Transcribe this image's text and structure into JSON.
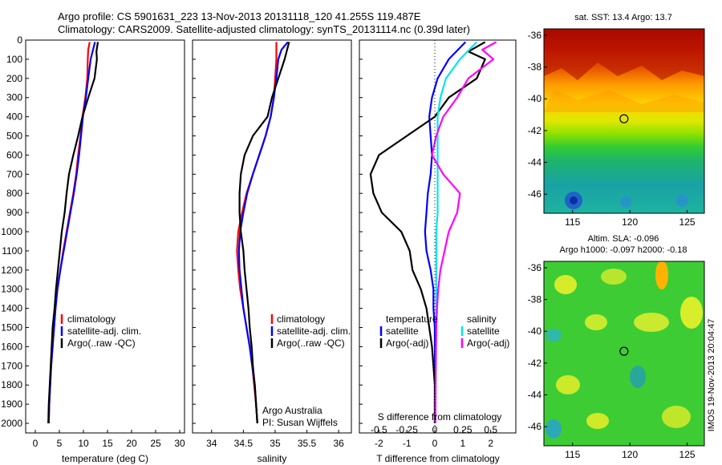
{
  "header": {
    "line1": "Argo profile: CS 5901631_223 13-Nov-2013 20131118_120 41.255S 119.487E",
    "line2": "Climatology: CARS2009. Satellite-adjusted climatology: synTS_20131114.nc (0.39d later)"
  },
  "colors": {
    "climatology": "#ff0000",
    "satellite": "#0000ff",
    "argo": "#000000",
    "satellite_s": "#00e5ee",
    "argo_s": "#ff00ff"
  },
  "depth_axis": {
    "ticks": [
      "0",
      "100",
      "200",
      "300",
      "400",
      "500",
      "600",
      "700",
      "800",
      "900",
      "1000",
      "1100",
      "1200",
      "1300",
      "1400",
      "1500",
      "1600",
      "1700",
      "1800",
      "1900",
      "2000"
    ],
    "range": [
      0,
      2050
    ]
  },
  "chart_data": [
    {
      "type": "line",
      "id": "temperature",
      "xlabel": "temperature (deg C)",
      "xlim": [
        -2,
        31
      ],
      "xticks": [
        0,
        5,
        10,
        15,
        20,
        25,
        30
      ],
      "xtick_labels": [
        "0",
        "5",
        "10",
        "15",
        "20",
        "25",
        "30"
      ],
      "legend": [
        "climatology",
        "satellite-adj. clim.",
        "Argo(..raw -QC)"
      ],
      "series": [
        {
          "name": "climatology",
          "color": "#ff0000",
          "points": [
            [
              11.3,
              10
            ],
            [
              11,
              50
            ],
            [
              10.9,
              100
            ],
            [
              10.8,
              200
            ],
            [
              10.4,
              300
            ],
            [
              9.8,
              400
            ],
            [
              9.4,
              500
            ],
            [
              8.9,
              600
            ],
            [
              8.5,
              700
            ],
            [
              7.9,
              800
            ],
            [
              7.2,
              900
            ],
            [
              6.5,
              1000
            ],
            [
              5.8,
              1100
            ],
            [
              5.2,
              1200
            ],
            [
              4.6,
              1300
            ],
            [
              4.2,
              1400
            ],
            [
              3.9,
              1500
            ],
            [
              3.6,
              1600
            ],
            [
              3.3,
              1700
            ],
            [
              3.1,
              1800
            ],
            [
              2.9,
              1900
            ],
            [
              2.8,
              2000
            ]
          ]
        },
        {
          "name": "satellite-adj. clim.",
          "color": "#0000ff",
          "points": [
            [
              12.4,
              10
            ],
            [
              12,
              50
            ],
            [
              11.5,
              100
            ],
            [
              11,
              200
            ],
            [
              10.5,
              300
            ],
            [
              9.9,
              400
            ],
            [
              9.5,
              500
            ],
            [
              9.1,
              600
            ],
            [
              8.6,
              700
            ],
            [
              8,
              800
            ],
            [
              7.3,
              900
            ],
            [
              6.6,
              1000
            ],
            [
              5.9,
              1100
            ],
            [
              5.2,
              1200
            ],
            [
              4.6,
              1300
            ],
            [
              4.2,
              1400
            ],
            [
              3.9,
              1500
            ],
            [
              3.6,
              1600
            ],
            [
              3.3,
              1700
            ],
            [
              3.1,
              1800
            ],
            [
              2.9,
              1900
            ],
            [
              2.8,
              2000
            ]
          ]
        },
        {
          "name": "Argo(..raw -QC)",
          "color": "#000000",
          "points": [
            [
              13,
              10
            ],
            [
              12.7,
              60
            ],
            [
              12.8,
              100
            ],
            [
              12.3,
              200
            ],
            [
              11,
              300
            ],
            [
              9.8,
              400
            ],
            [
              8.9,
              500
            ],
            [
              7.9,
              600
            ],
            [
              7,
              700
            ],
            [
              6.5,
              800
            ],
            [
              6.1,
              900
            ],
            [
              5.5,
              1000
            ],
            [
              5.1,
              1100
            ],
            [
              4.7,
              1200
            ],
            [
              4.3,
              1300
            ],
            [
              4,
              1400
            ],
            [
              3.6,
              1500
            ],
            [
              3.4,
              1600
            ],
            [
              3.2,
              1700
            ],
            [
              3,
              1800
            ],
            [
              2.8,
              1900
            ],
            [
              2.7,
              2000
            ]
          ]
        }
      ]
    },
    {
      "type": "line",
      "id": "salinity",
      "xlabel": "salinity",
      "xlim": [
        33.7,
        36.2
      ],
      "xticks": [
        34,
        34.5,
        35,
        35.5,
        36
      ],
      "xtick_labels": [
        "34",
        "34.5",
        "35",
        "35.5",
        "36"
      ],
      "legend": [
        "climatology",
        "satellite-adj. clim.",
        "Argo(..raw -QC)"
      ],
      "credits": [
        "Argo Australia",
        "PI: Susan Wijffels"
      ],
      "series": [
        {
          "name": "climatology",
          "color": "#ff0000",
          "points": [
            [
              35.02,
              10
            ],
            [
              35.02,
              100
            ],
            [
              35,
              200
            ],
            [
              34.98,
              300
            ],
            [
              34.93,
              400
            ],
            [
              34.85,
              500
            ],
            [
              34.75,
              600
            ],
            [
              34.65,
              700
            ],
            [
              34.55,
              800
            ],
            [
              34.48,
              900
            ],
            [
              34.42,
              1000
            ],
            [
              34.4,
              1100
            ],
            [
              34.42,
              1200
            ],
            [
              34.45,
              1300
            ],
            [
              34.5,
              1400
            ],
            [
              34.55,
              1500
            ],
            [
              34.6,
              1600
            ],
            [
              34.64,
              1700
            ],
            [
              34.67,
              1800
            ],
            [
              34.7,
              1900
            ],
            [
              34.72,
              2000
            ]
          ]
        },
        {
          "name": "satellite-adj. clim.",
          "color": "#0000ff",
          "points": [
            [
              35.2,
              10
            ],
            [
              35.1,
              50
            ],
            [
              35.05,
              100
            ],
            [
              35.02,
              200
            ],
            [
              34.98,
              300
            ],
            [
              34.93,
              400
            ],
            [
              34.85,
              500
            ],
            [
              34.75,
              600
            ],
            [
              34.65,
              700
            ],
            [
              34.56,
              800
            ],
            [
              34.5,
              900
            ],
            [
              34.45,
              1000
            ],
            [
              34.43,
              1100
            ],
            [
              34.44,
              1200
            ],
            [
              34.47,
              1300
            ],
            [
              34.5,
              1400
            ],
            [
              34.55,
              1500
            ],
            [
              34.6,
              1600
            ],
            [
              34.64,
              1700
            ],
            [
              34.68,
              1800
            ],
            [
              34.7,
              1900
            ],
            [
              34.72,
              2000
            ]
          ]
        },
        {
          "name": "Argo(..raw -QC)",
          "color": "#000000",
          "points": [
            [
              35.22,
              10
            ],
            [
              35.15,
              100
            ],
            [
              35.05,
              200
            ],
            [
              34.95,
              300
            ],
            [
              34.88,
              400
            ],
            [
              34.65,
              500
            ],
            [
              34.52,
              600
            ],
            [
              34.46,
              700
            ],
            [
              34.44,
              800
            ],
            [
              34.44,
              900
            ],
            [
              34.46,
              1000
            ],
            [
              34.5,
              1100
            ],
            [
              34.52,
              1200
            ],
            [
              34.55,
              1300
            ],
            [
              34.58,
              1400
            ],
            [
              34.6,
              1500
            ],
            [
              34.63,
              1600
            ],
            [
              34.65,
              1700
            ],
            [
              34.68,
              1800
            ],
            [
              34.7,
              1900
            ],
            [
              34.72,
              2000
            ]
          ]
        }
      ]
    },
    {
      "type": "line",
      "id": "difference",
      "xlabel": "T difference from climatology",
      "xlabel_top": "S difference from climatology",
      "xlim": [
        -2.7,
        2.9
      ],
      "xticks": [
        -2,
        -1,
        0,
        1,
        2
      ],
      "xtick_labels": [
        "-2",
        "-1",
        "0",
        "1",
        "2"
      ],
      "s_ticks": [
        -0.5,
        -0.25,
        0,
        0.25,
        0.5
      ],
      "s_tick_labels": [
        "-0.5",
        "-0.25",
        "0",
        "0.25",
        "0.5"
      ],
      "legend_t": {
        "title": "temperature",
        "items": [
          "satellite",
          "Argo(-adj)"
        ]
      },
      "legend_s": {
        "title": "salinity",
        "items": [
          "satellite",
          "Argo(-adj)"
        ]
      },
      "series": [
        {
          "name": "satellite",
          "color": "#0000ff",
          "points": [
            [
              1.1,
              10
            ],
            [
              0.5,
              100
            ],
            [
              0.1,
              200
            ],
            [
              -0.1,
              300
            ],
            [
              -0.2,
              400
            ],
            [
              -0.15,
              500
            ],
            [
              -0.1,
              600
            ],
            [
              -0.15,
              700
            ],
            [
              -0.25,
              800
            ],
            [
              -0.3,
              900
            ],
            [
              -0.35,
              1000
            ],
            [
              -0.3,
              1100
            ],
            [
              -0.15,
              1200
            ],
            [
              -0.05,
              1300
            ],
            [
              -0.05,
              1400
            ],
            [
              0,
              1500
            ],
            [
              0,
              1600
            ],
            [
              0,
              1700
            ],
            [
              0,
              1800
            ],
            [
              0,
              1900
            ],
            [
              0,
              2000
            ]
          ]
        },
        {
          "name": "Argo(-adj)",
          "color": "#000000",
          "points": [
            [
              1.8,
              10
            ],
            [
              1.2,
              60
            ],
            [
              1.8,
              100
            ],
            [
              1.5,
              200
            ],
            [
              0.5,
              300
            ],
            [
              0,
              400
            ],
            [
              -1,
              500
            ],
            [
              -2,
              600
            ],
            [
              -2.3,
              700
            ],
            [
              -2.2,
              800
            ],
            [
              -1.9,
              900
            ],
            [
              -1.2,
              1000
            ],
            [
              -0.9,
              1100
            ],
            [
              -0.8,
              1200
            ],
            [
              -0.5,
              1300
            ],
            [
              -0.3,
              1400
            ],
            [
              -0.2,
              1500
            ],
            [
              -0.1,
              1600
            ],
            [
              -0.05,
              1700
            ],
            [
              0,
              1800
            ],
            [
              0,
              1900
            ],
            [
              0,
              2000
            ]
          ]
        },
        {
          "name": "satellite",
          "color": "#00e5ee",
          "points": [
            [
              1.5,
              10
            ],
            [
              0.9,
              100
            ],
            [
              0.4,
              200
            ],
            [
              0.2,
              300
            ],
            [
              0.1,
              400
            ],
            [
              0.1,
              500
            ],
            [
              0.1,
              600
            ],
            [
              0.1,
              700
            ],
            [
              0.1,
              800
            ],
            [
              0.1,
              900
            ],
            [
              0.05,
              1000
            ],
            [
              0.05,
              1200
            ],
            [
              0.05,
              1500
            ],
            [
              0.02,
              2000
            ]
          ]
        },
        {
          "name": "Argo(-adj)",
          "color": "#ff00ff",
          "points": [
            [
              2.2,
              10
            ],
            [
              1.7,
              50
            ],
            [
              2.1,
              100
            ],
            [
              1.2,
              200
            ],
            [
              0.8,
              300
            ],
            [
              0.3,
              400
            ],
            [
              0.05,
              500
            ],
            [
              -0.1,
              600
            ],
            [
              0.3,
              700
            ],
            [
              0.9,
              800
            ],
            [
              0.8,
              900
            ],
            [
              0.5,
              1000
            ],
            [
              0.35,
              1100
            ],
            [
              0.2,
              1200
            ],
            [
              0.12,
              1300
            ],
            [
              0.08,
              1400
            ],
            [
              0.05,
              1500
            ],
            [
              0.03,
              1700
            ],
            [
              0.02,
              2000
            ]
          ]
        }
      ]
    },
    {
      "type": "heatmap",
      "id": "sst_map",
      "title": "sat. SST: 13.4  Argo: 13.7",
      "xticks": [
        115,
        120,
        125
      ],
      "yticks": [
        -36,
        -38,
        -40,
        -42,
        -44,
        -46
      ],
      "xtick_labels": [
        "115",
        "120",
        "125"
      ],
      "ytick_labels": [
        "-36",
        "-38",
        "-40",
        "-42",
        "-44",
        "-46"
      ],
      "xlim": [
        112.5,
        126.5
      ],
      "ylim": [
        -47.2,
        -35.6
      ],
      "marker": [
        119.487,
        -41.255
      ]
    },
    {
      "type": "heatmap",
      "id": "sla_map",
      "title": "Altim. SLA: -0.096",
      "subtitle": "Argo h1000: -0.097 h2000: -0.18",
      "xticks": [
        115,
        120,
        125
      ],
      "yticks": [
        -36,
        -38,
        -40,
        -42,
        -44,
        -46
      ],
      "xtick_labels": [
        "115",
        "120",
        "125"
      ],
      "ytick_labels": [
        "-36",
        "-38",
        "-40",
        "-42",
        "-44",
        "-46"
      ],
      "xlim": [
        112.5,
        126.5
      ],
      "ylim": [
        -47.2,
        -35.6
      ],
      "marker": [
        119.487,
        -41.255
      ]
    }
  ],
  "footer": {
    "stamp": "IMOS 19-Nov-2013 20:04:47"
  }
}
